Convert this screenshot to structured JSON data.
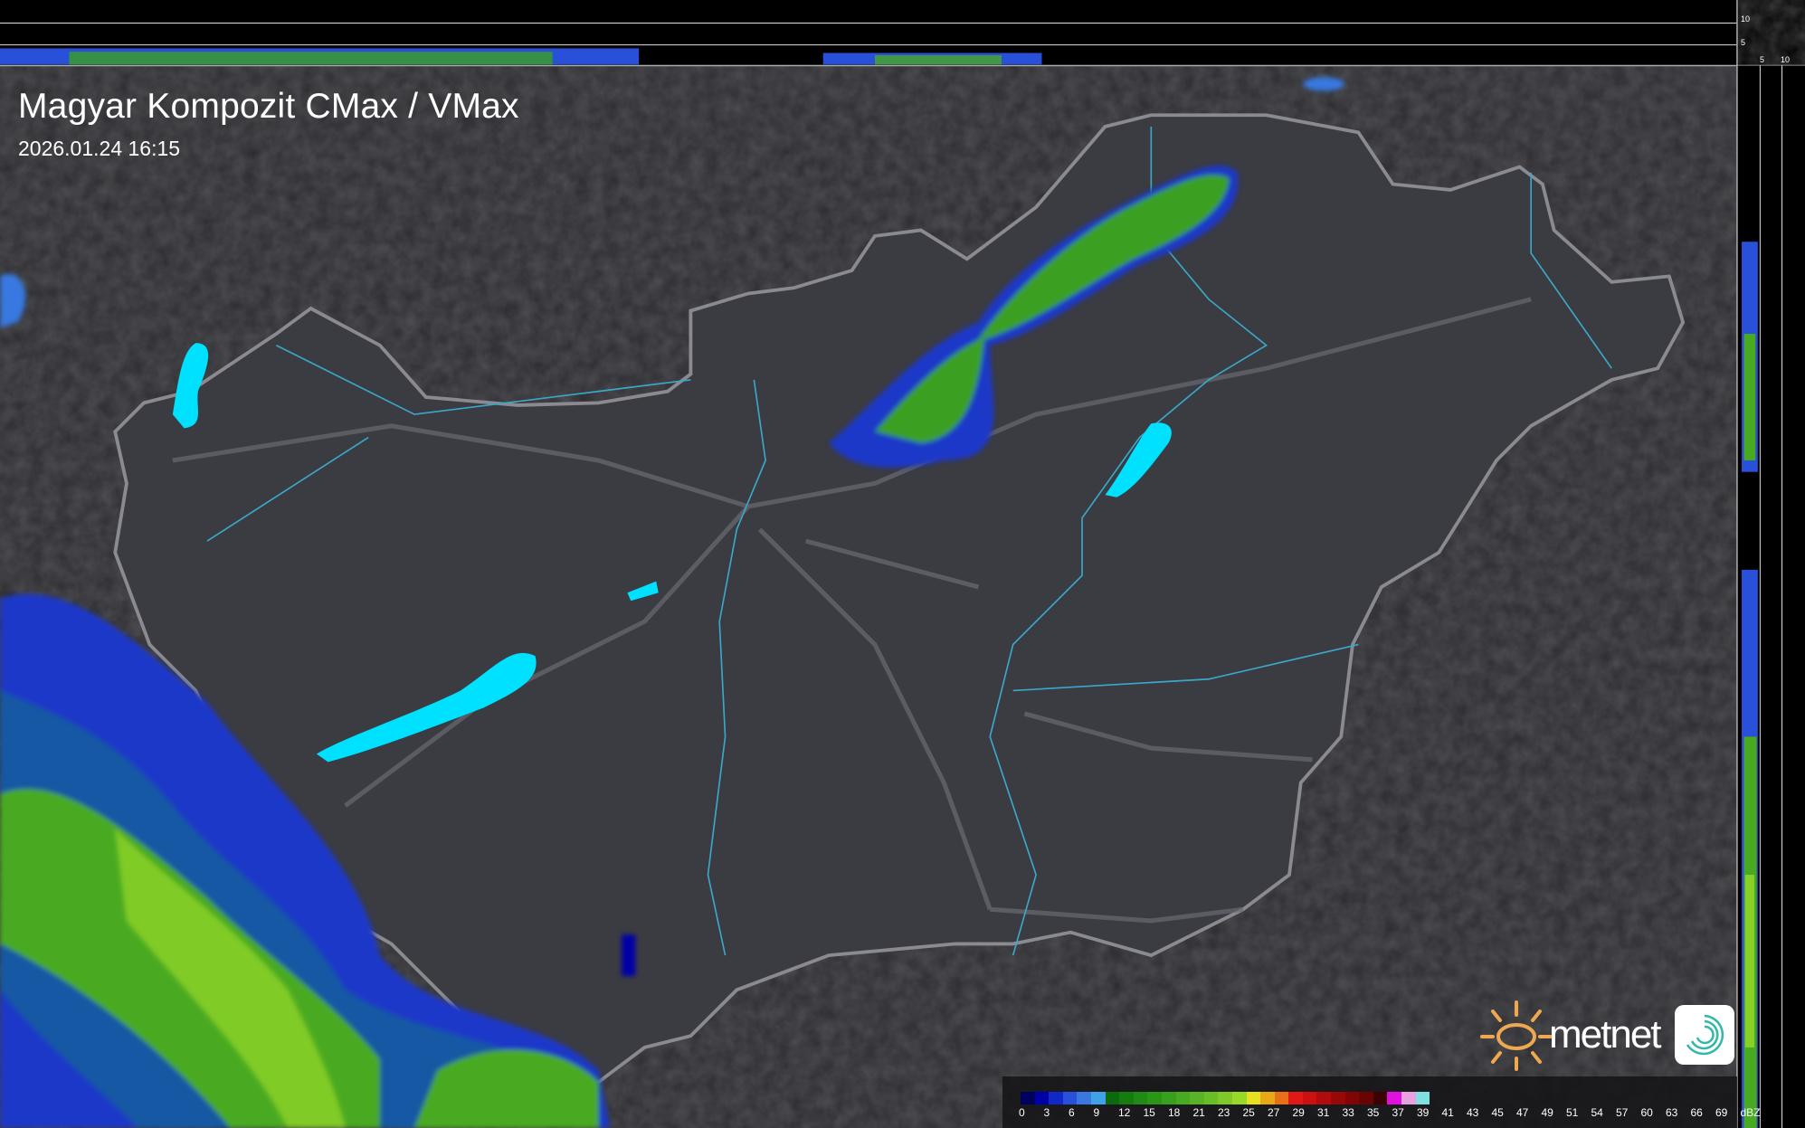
{
  "header": {
    "title": "Magyar Kompozit CMax / VMax",
    "timestamp": "2026.01.24 16:15"
  },
  "legend": {
    "labels": [
      "0",
      "3",
      "6",
      "9",
      "12",
      "15",
      "18",
      "21",
      "23",
      "25",
      "27",
      "29",
      "31",
      "33",
      "35",
      "37",
      "39",
      "41",
      "43",
      "45",
      "47",
      "49",
      "51",
      "54",
      "57",
      "60",
      "63",
      "66",
      "69",
      "dBZ"
    ],
    "colors": [
      "#00005e",
      "#0000a8",
      "#1028c8",
      "#2850d8",
      "#3878e0",
      "#40a0e8",
      "#0c6a0c",
      "#167c10",
      "#208a14",
      "#2a9618",
      "#38a01c",
      "#48aa20",
      "#58b424",
      "#68be24",
      "#80c828",
      "#98d828",
      "#e6e020",
      "#e8a818",
      "#e87018",
      "#e01818",
      "#cc1010",
      "#b00c0c",
      "#980808",
      "#800606",
      "#680404",
      "#3c0202",
      "#e010e0",
      "#e8a0e0",
      "#80e0e0"
    ]
  },
  "cross_section": {
    "vertical_labels": [
      "10",
      "5"
    ],
    "horizontal_labels": [
      "5",
      "10"
    ]
  },
  "logo": {
    "brand": "metnet",
    "colors": {
      "sun": "#f0a850",
      "swirl": "#30b8a8"
    }
  },
  "map_colors": {
    "background": "#2a2a2e",
    "country": "#3a3a40",
    "border": "#8a8a90",
    "rivers": "#3aa8c8",
    "lakes": "#00e0ff"
  }
}
